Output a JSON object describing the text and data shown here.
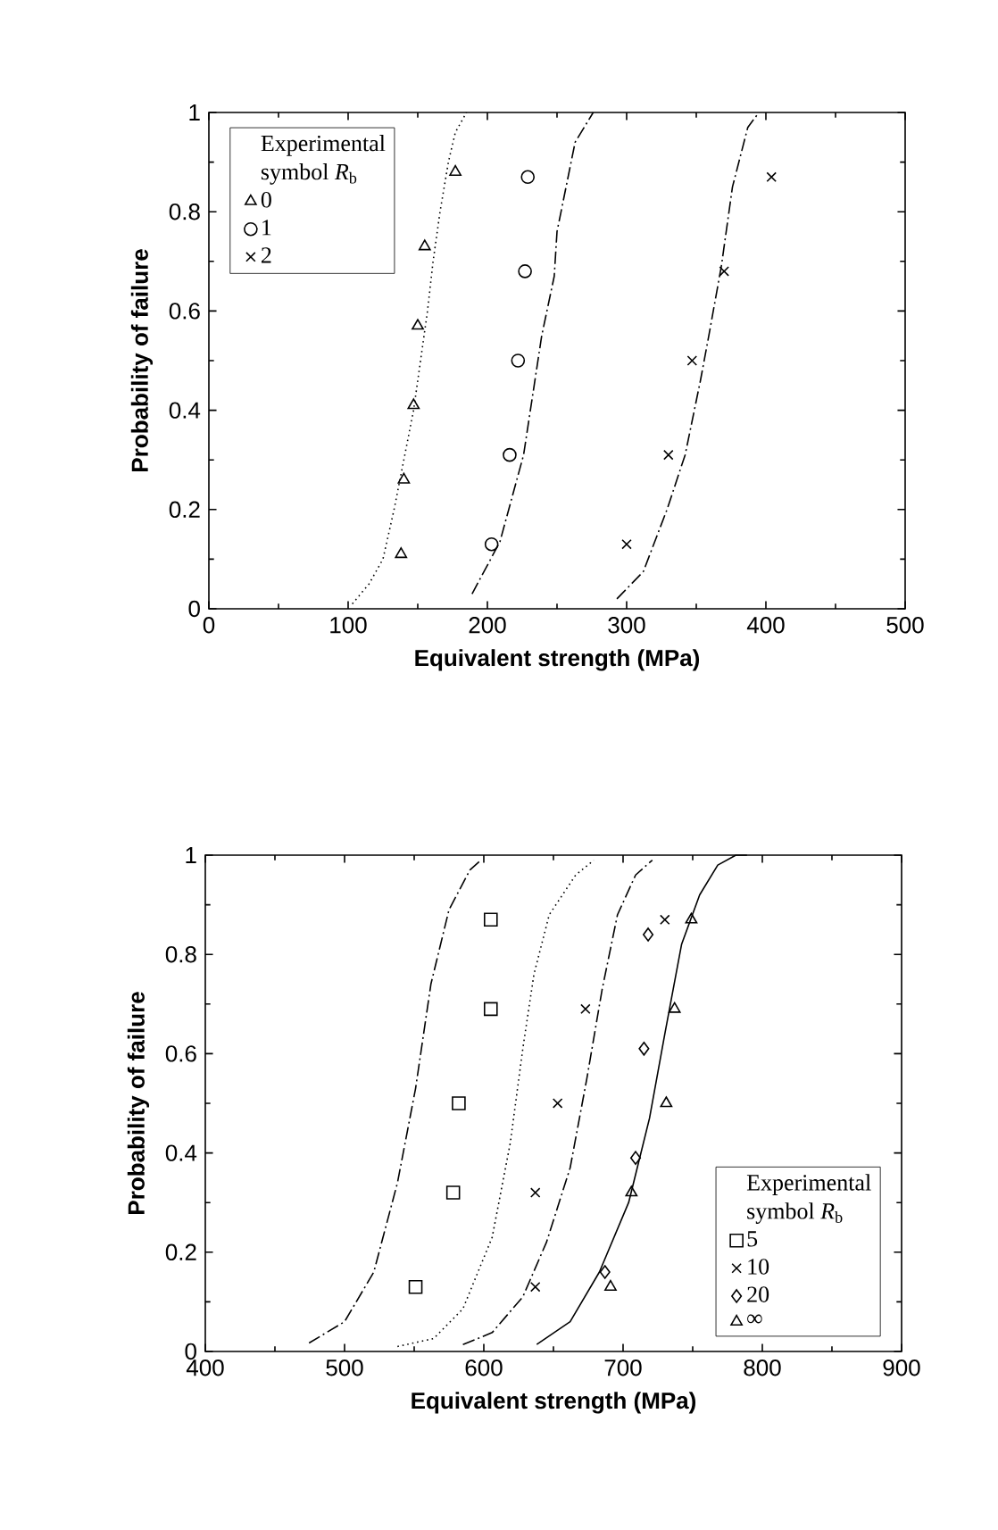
{
  "chart_data": [
    {
      "type": "scatter",
      "xlabel": "Equivalent strength (MPa)",
      "ylabel": "Probability of failure",
      "xlim": [
        0,
        500
      ],
      "ylim": [
        0,
        1
      ],
      "xticks": [
        0,
        100,
        200,
        300,
        400,
        500
      ],
      "yticks": [
        0,
        0.2,
        0.4,
        0.6,
        0.8,
        1
      ],
      "legend": "top left",
      "legend_title": "Experimental",
      "annotations": [
        "symbol *R*$_{b}$"
      ],
      "series": [
        {
          "name": "0",
          "color": "#000000",
          "marker": "triangle",
          "x": [
            177,
            155,
            150,
            147,
            140,
            138
          ],
          "values": [
            0.88,
            0.73,
            0.57,
            0.41,
            0.26,
            0.11
          ]
        },
        {
          "name": "1",
          "color": "#000000",
          "marker": "circle",
          "x": [
            229,
            227,
            222,
            216,
            203
          ],
          "values": [
            0.87,
            0.68,
            0.5,
            0.31,
            0.13
          ]
        },
        {
          "name": "2",
          "color": "#000000",
          "marker": "cross",
          "x": [
            404,
            370,
            347,
            330,
            300
          ],
          "values": [
            0.87,
            0.68,
            0.5,
            0.31,
            0.13
          ]
        },
        {
          "type": "line",
          "color": "#000000",
          "line_style": "dotted",
          "x": [
            103,
            115,
            125,
            133,
            140,
            147,
            152,
            157,
            161,
            166,
            172,
            177,
            185
          ],
          "values": [
            0.01,
            0.05,
            0.1,
            0.2,
            0.3,
            0.4,
            0.5,
            0.6,
            0.7,
            0.8,
            0.9,
            0.96,
            1
          ]
        },
        {
          "type": "line",
          "color": "#000000",
          "line_style": "dashed",
          "x": [
            189,
            209,
            226,
            239,
            248,
            250,
            263,
            276
          ],
          "values": [
            0.03,
            0.135,
            0.31,
            0.55,
            0.67,
            0.76,
            0.94,
            1
          ]
        },
        {
          "type": "line",
          "color": "#000000",
          "line_style": "dashed",
          "x": [
            293,
            312,
            329,
            342,
            353,
            359,
            368,
            376,
            387,
            395
          ],
          "values": [
            0.02,
            0.075,
            0.2,
            0.31,
            0.46,
            0.55,
            0.69,
            0.85,
            0.97,
            1
          ]
        }
      ]
    },
    {
      "type": "scatter",
      "xlabel": "Equivalent strength (MPa)",
      "ylabel": "Probability of failure",
      "xlim": [
        400,
        900
      ],
      "ylim": [
        0,
        1
      ],
      "xticks": [
        400,
        500,
        600,
        700,
        800,
        900
      ],
      "yticks": [
        0,
        0.2,
        0.4,
        0.6,
        0.8,
        1
      ],
      "legend": "bottom right",
      "legend_title": "Experimental",
      "annotations": [
        "symbol *R*$_{b}$"
      ],
      "series": [
        {
          "name": "5",
          "color": "#000000",
          "marker": "square",
          "x": [
            605,
            605,
            582,
            578,
            551
          ],
          "values": [
            0.87,
            0.69,
            0.5,
            0.32,
            0.13
          ]
        },
        {
          "name": "10",
          "color": "#000000",
          "marker": "cross",
          "x": [
            730,
            673,
            653,
            637,
            637
          ],
          "values": [
            0.87,
            0.69,
            0.5,
            0.32,
            0.13
          ]
        },
        {
          "name": "20",
          "color": "#000000",
          "marker": "diamond",
          "x": [
            718,
            715,
            709,
            687
          ],
          "values": [
            0.84,
            0.61,
            0.39,
            0.16
          ]
        },
        {
          "name": "∞",
          "color": "#000000",
          "marker": "triangle",
          "x": [
            749,
            737,
            731,
            706,
            691
          ],
          "values": [
            0.87,
            0.69,
            0.5,
            0.32,
            0.13
          ]
        },
        {
          "type": "line",
          "color": "#000000",
          "line_style": "dashed",
          "x": [
            474.5,
            500,
            521,
            538,
            551,
            562,
            575,
            590,
            598
          ],
          "values": [
            0.017,
            0.06,
            0.16,
            0.34,
            0.53,
            0.74,
            0.89,
            0.97,
            0.99
          ]
        },
        {
          "type": "line",
          "color": "#000000",
          "line_style": "dotted",
          "x": [
            538,
            564,
            585,
            606,
            619,
            628,
            636,
            647,
            666,
            679
          ],
          "values": [
            0.01,
            0.026,
            0.086,
            0.23,
            0.42,
            0.61,
            0.76,
            0.88,
            0.96,
            0.99
          ]
        },
        {
          "type": "line",
          "color": "#000000",
          "line_style": "dashed",
          "x": [
            585,
            606,
            628,
            645,
            662,
            674,
            685,
            696,
            709,
            721
          ],
          "values": [
            0.014,
            0.038,
            0.11,
            0.22,
            0.37,
            0.55,
            0.73,
            0.88,
            0.96,
            0.99
          ]
        },
        {
          "type": "line",
          "color": "#000000",
          "line_style": "solid",
          "x": [
            638,
            662,
            683,
            704,
            719,
            730,
            742,
            755,
            768,
            781,
            789
          ],
          "values": [
            0.014,
            0.06,
            0.16,
            0.3,
            0.47,
            0.64,
            0.82,
            0.92,
            0.98,
            1,
            1
          ]
        }
      ]
    }
  ]
}
